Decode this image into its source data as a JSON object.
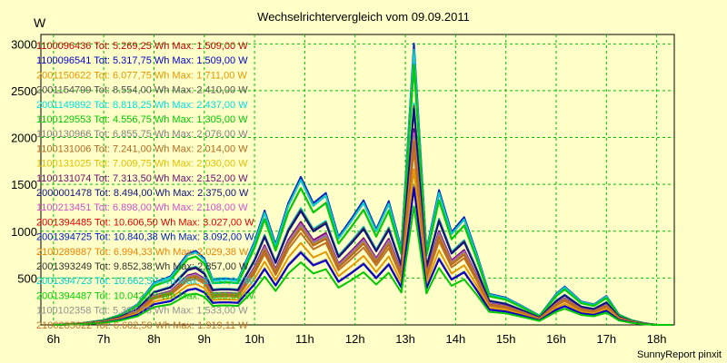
{
  "chart_data": {
    "type": "line",
    "title": "Wechselrichtervergleich vom 09.09.2011",
    "ylabel": "W",
    "xlabel": "",
    "ylim": [
      0,
      3100
    ],
    "xlim": [
      5.75,
      18.35
    ],
    "grid": true,
    "y_ticks": [
      500,
      1000,
      1500,
      2000,
      2500,
      3000
    ],
    "x_ticks": [
      {
        "value": 6,
        "label": "6h"
      },
      {
        "value": 7,
        "label": "7h"
      },
      {
        "value": 8,
        "label": "8h"
      },
      {
        "value": 9,
        "label": "9h"
      },
      {
        "value": 10,
        "label": "10h"
      },
      {
        "value": 11,
        "label": "11h"
      },
      {
        "value": 12,
        "label": "12h"
      },
      {
        "value": 13,
        "label": "13h"
      },
      {
        "value": 14,
        "label": "14h"
      },
      {
        "value": 15,
        "label": "15h"
      },
      {
        "value": 16,
        "label": "16h"
      },
      {
        "value": 17,
        "label": "17h"
      },
      {
        "value": 18,
        "label": "18h"
      }
    ],
    "legend_position": "top-left",
    "time": [
      6.0,
      6.5,
      7.0,
      7.33,
      7.67,
      8.0,
      8.33,
      8.67,
      8.83,
      9.0,
      9.17,
      9.33,
      9.5,
      9.67,
      10.0,
      10.2,
      10.42,
      10.67,
      10.92,
      11.17,
      11.42,
      11.67,
      11.92,
      12.17,
      12.42,
      12.67,
      12.92,
      13.17,
      13.42,
      13.67,
      13.92,
      14.17,
      14.42,
      14.67,
      15.0,
      15.33,
      15.67,
      16.0,
      16.17,
      16.5,
      16.75,
      17.0,
      17.25,
      17.5,
      17.75,
      18.0,
      18.3
    ],
    "profile_scale": 2380,
    "profile": [
      0.0,
      0.006,
      0.021,
      0.046,
      0.092,
      0.189,
      0.218,
      0.319,
      0.332,
      0.298,
      0.202,
      0.206,
      0.206,
      0.202,
      0.374,
      0.513,
      0.361,
      0.546,
      0.664,
      0.546,
      0.592,
      0.395,
      0.474,
      0.559,
      0.429,
      0.555,
      0.344,
      0.924,
      0.336,
      0.605,
      0.416,
      0.483,
      0.319,
      0.139,
      0.122,
      0.084,
      0.042,
      0.139,
      0.172,
      0.105,
      0.092,
      0.13,
      0.046,
      0.021,
      0.008,
      0.0,
      0.0
    ],
    "series": [
      {
        "id": "1100096436",
        "label": "1100096436 Tot: 5.269,25 Wh Max: 1.509,00 W",
        "color": "#c00000",
        "max_w": 1509
      },
      {
        "id": "1100096541",
        "label": "1100096541 Tot: 5.317,75 Wh Max: 1.509,00 W",
        "color": "#0000cc",
        "max_w": 1509
      },
      {
        "id": "2001150622",
        "label": "2001150622 Tot: 6.077,75 Wh Max: 1.711,00 W",
        "color": "#e69600",
        "max_w": 1711
      },
      {
        "id": "2001154799",
        "label": "2001154799 Tot: 8.554,00 Wh Max: 2.410,00 W",
        "color": "#505050",
        "max_w": 2410
      },
      {
        "id": "2001149892",
        "label": "2001149892 Tot: 8.818,25 Wh Max: 2.437,00 W",
        "color": "#00e0e0",
        "max_w": 2437
      },
      {
        "id": "1100129553",
        "label": "1100129553 Tot: 4.556,75 Wh Max: 1.305,00 W",
        "color": "#00c800",
        "max_w": 1305
      },
      {
        "id": "1100130966",
        "label": "1100130966 Tot: 6.855,75 Wh Max: 2.076,00 W",
        "color": "#808080",
        "max_w": 2076
      },
      {
        "id": "1100131006",
        "label": "1100131006 Tot: 7.241,00 Wh Max: 2.014,00 W",
        "color": "#b06a20",
        "max_w": 2014
      },
      {
        "id": "1100131025",
        "label": "1100131025 Tot: 7.009,75 Wh Max: 2.030,00 W",
        "color": "#e0c000",
        "max_w": 2030
      },
      {
        "id": "1100131074",
        "label": "1100131074 Tot: 7.313,50 Wh Max: 2.152,00 W",
        "color": "#6a1070",
        "max_w": 2152
      },
      {
        "id": "2000001478",
        "label": "2000001478 Tot: 8.494,00 Wh Max: 2.375,00 W",
        "color": "#101080",
        "max_w": 2375
      },
      {
        "id": "1100213451",
        "label": "1100213451 Tot: 6.898,00 Wh Max: 2.108,00 W",
        "color": "#d050d0",
        "max_w": 2108
      },
      {
        "id": "2001394485",
        "label": "2001394485 Tot: 10.606,50 Wh Max: 3.027,00 W",
        "color": "#e00000",
        "max_w": 3027
      },
      {
        "id": "2001394725",
        "label": "2001394725 Tot: 10.840,38 Wh Max: 3.092,00 W",
        "color": "#0020c0",
        "max_w": 3092
      },
      {
        "id": "2100289887",
        "label": "2100289887 Tot: 6.994,33 Wh Max: 2.029,38 W",
        "color": "#f08000",
        "max_w": 2029
      },
      {
        "id": "2001393249",
        "label": "2001393249 Tot: 9.852,38 Wh Max: 2.857,00 W",
        "color": "#303030",
        "max_w": 2857
      },
      {
        "id": "2001394723",
        "label": "2001394723 Tot: 10.662,50 Wh Max: 3.027,00 W",
        "color": "#00d0d0",
        "max_w": 3027
      },
      {
        "id": "2001394487",
        "label": "2001394487 Tot: 10.042,13 Wh Max: 2.853,00 W",
        "color": "#00d000",
        "max_w": 2853
      },
      {
        "id": "1100102358",
        "label": "1100102358 Tot: 5.304,75 Wh Max: 1.533,00 W",
        "color": "#909090",
        "max_w": 1533
      },
      {
        "id": "2100285622",
        "label": "2100285622 Tot: 6.602,50 Wh Max: 1.919,11 W",
        "color": "#c07020",
        "max_w": 1919
      }
    ]
  },
  "footer": {
    "text": "SunnyReport pinxit"
  }
}
